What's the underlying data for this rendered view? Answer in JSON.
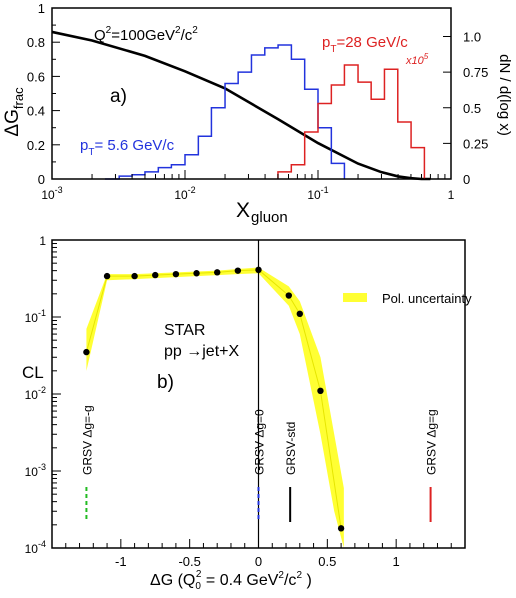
{
  "chart_data": [
    {
      "type": "line",
      "panel_label": "a)",
      "x_scale": "log",
      "xlim": [
        0.001,
        1
      ],
      "ylim_left": [
        0,
        1
      ],
      "ylim_right": [
        0,
        1.2
      ],
      "x_ticks": [
        {
          "value": 0.001,
          "base": "10",
          "exp": "-3"
        },
        {
          "value": 0.01,
          "base": "10",
          "exp": "-2"
        },
        {
          "value": 0.1,
          "base": "10",
          "exp": "-1"
        },
        {
          "value": 1,
          "base": "1",
          "exp": ""
        }
      ],
      "y_ticks_left": [
        "0",
        "0.2",
        "0.4",
        "0.6",
        "0.8",
        "1"
      ],
      "y_ticks_left_values": [
        0,
        0.2,
        0.4,
        0.6,
        0.8,
        1.0
      ],
      "y_ticks_right": [
        "0",
        "0.25",
        "0.5",
        "0.75",
        "1.0"
      ],
      "y_ticks_right_values": [
        0,
        0.25,
        0.5,
        0.75,
        1.0
      ],
      "xlabel": {
        "main": "X",
        "sub": "gluon"
      },
      "ylabel_left": {
        "main": "ΔG",
        "sub": "frac"
      },
      "ylabel_right": "dN / d(log x)",
      "annotations": {
        "q2": {
          "pre": "Q",
          "sup1": "2",
          "mid": "=100GeV",
          "sup2": "2",
          "post": "/c",
          "sup3": "2"
        },
        "pt_low": {
          "pre": "p",
          "sub": "T",
          "post": "= 5.6 GeV/c"
        },
        "pt_high": {
          "pre": "p",
          "sub": "T",
          "post": "=28 GeV/c"
        },
        "scale": {
          "pre": "x10",
          "sup": "5"
        }
      },
      "curve": {
        "color": "#000000",
        "x": [
          0.001,
          0.002,
          0.005,
          0.01,
          0.02,
          0.05,
          0.1,
          0.2,
          0.3,
          0.4,
          0.5,
          0.6,
          0.7
        ],
        "y": [
          0.86,
          0.81,
          0.72,
          0.63,
          0.53,
          0.35,
          0.21,
          0.09,
          0.04,
          0.015,
          0.005,
          0.0,
          0.0
        ]
      },
      "series": [
        {
          "name": "pT = 5.6 GeV/c",
          "color": "#2233dd",
          "axis": "right",
          "bin_edges": [
            0.0025,
            0.0032,
            0.004,
            0.005,
            0.0063,
            0.0079,
            0.01,
            0.0126,
            0.0158,
            0.02,
            0.0251,
            0.0316,
            0.0398,
            0.0501,
            0.0631,
            0.0794,
            0.1,
            0.126,
            0.158
          ],
          "values": [
            0.0,
            0.02,
            0.03,
            0.05,
            0.08,
            0.1,
            0.17,
            0.3,
            0.5,
            0.67,
            0.75,
            0.87,
            0.92,
            0.94,
            0.84,
            0.63,
            0.36,
            0.11
          ]
        },
        {
          "name": "pT =28 GeV/c",
          "color": "#dd2222",
          "axis": "right",
          "bin_edges": [
            0.05,
            0.063,
            0.0794,
            0.1,
            0.126,
            0.158,
            0.2,
            0.251,
            0.316,
            0.398,
            0.501,
            0.631
          ],
          "values": [
            0.05,
            0.1,
            0.33,
            0.53,
            0.66,
            0.8,
            0.68,
            0.56,
            0.77,
            0.4,
            0.22
          ]
        }
      ]
    },
    {
      "type": "scatter",
      "panel_label": "b)",
      "y_scale": "log",
      "xlim": [
        -1.5,
        1.5
      ],
      "ylim": [
        0.0001,
        1
      ],
      "x_ticks": [
        "-1",
        "-0.5",
        "0",
        "0.5",
        "1"
      ],
      "x_tick_values": [
        -1,
        -0.5,
        0,
        0.5,
        1
      ],
      "y_ticks": [
        {
          "value": 0.0001,
          "base": "10",
          "exp": "-4"
        },
        {
          "value": 0.001,
          "base": "10",
          "exp": "-3"
        },
        {
          "value": 0.01,
          "base": "10",
          "exp": "-2"
        },
        {
          "value": 0.1,
          "base": "10",
          "exp": "-1"
        },
        {
          "value": 1,
          "base": "1",
          "exp": ""
        }
      ],
      "ylabel": "CL",
      "xlabel": {
        "pre": "ΔG (Q",
        "sub": "0",
        "sup1": "2",
        "mid": " = 0.4 GeV",
        "sup2": "2",
        "post": "/c",
        "sup3": "2",
        "end": " )"
      },
      "text_star": "STAR",
      "text_process": "pp →jet+X",
      "legend": {
        "label": "Pol. uncertainty",
        "color": "#ffff33",
        "position": "top-right"
      },
      "points": {
        "x": [
          -1.25,
          -1.1,
          -0.9,
          -0.75,
          -0.6,
          -0.45,
          -0.3,
          -0.15,
          0.0,
          0.22,
          0.3,
          0.45,
          0.6
        ],
        "y": [
          0.035,
          0.34,
          0.34,
          0.35,
          0.36,
          0.37,
          0.38,
          0.4,
          0.41,
          0.19,
          0.11,
          0.011,
          0.00018
        ]
      },
      "band": {
        "x": [
          -1.25,
          -1.1,
          -0.9,
          -0.75,
          -0.6,
          -0.45,
          -0.3,
          -0.15,
          0.0,
          0.22,
          0.3,
          0.45,
          0.55,
          0.62
        ],
        "y_low": [
          0.02,
          0.3,
          0.31,
          0.32,
          0.33,
          0.34,
          0.35,
          0.36,
          0.37,
          0.14,
          0.06,
          0.003,
          0.0003,
          0.0001
        ],
        "y_high": [
          0.07,
          0.36,
          0.36,
          0.37,
          0.38,
          0.39,
          0.4,
          0.42,
          0.44,
          0.25,
          0.16,
          0.03,
          0.003,
          0.0006
        ]
      },
      "markers": [
        {
          "label": "GRSV  Δg=-g",
          "x": -1.25,
          "color": "#22bb22",
          "style": "dashed"
        },
        {
          "label": "GRSV  Δg=0",
          "x": 0.0,
          "color": "#2233dd",
          "style": "dashed"
        },
        {
          "label": "GRSV-std",
          "x": 0.23,
          "color": "#000000",
          "style": "solid"
        },
        {
          "label": "GRSV  Δg=g",
          "x": 1.25,
          "color": "#dd2222",
          "style": "solid"
        }
      ]
    }
  ]
}
